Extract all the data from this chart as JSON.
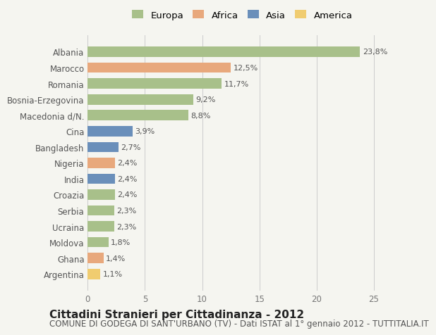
{
  "countries": [
    "Albania",
    "Marocco",
    "Romania",
    "Bosnia-Erzegovina",
    "Macedonia d/N.",
    "Cina",
    "Bangladesh",
    "Nigeria",
    "India",
    "Croazia",
    "Serbia",
    "Ucraina",
    "Moldova",
    "Ghana",
    "Argentina"
  ],
  "values": [
    23.8,
    12.5,
    11.7,
    9.2,
    8.8,
    3.9,
    2.7,
    2.4,
    2.4,
    2.4,
    2.3,
    2.3,
    1.8,
    1.4,
    1.1
  ],
  "labels": [
    "23,8%",
    "12,5%",
    "11,7%",
    "9,2%",
    "8,8%",
    "3,9%",
    "2,7%",
    "2,4%",
    "2,4%",
    "2,4%",
    "2,3%",
    "2,3%",
    "1,8%",
    "1,4%",
    "1,1%"
  ],
  "continents": [
    "Europa",
    "Africa",
    "Europa",
    "Europa",
    "Europa",
    "Asia",
    "Asia",
    "Africa",
    "Asia",
    "Europa",
    "Europa",
    "Europa",
    "Europa",
    "Africa",
    "America"
  ],
  "colors": {
    "Europa": "#a8c08a",
    "Africa": "#e8a87c",
    "Asia": "#6a8fba",
    "America": "#f0cc70"
  },
  "legend_order": [
    "Europa",
    "Africa",
    "Asia",
    "America"
  ],
  "xlim": [
    0,
    27
  ],
  "xticks": [
    0,
    5,
    10,
    15,
    20,
    25
  ],
  "title": "Cittadini Stranieri per Cittadinanza - 2012",
  "subtitle": "COMUNE DI GODEGA DI SANT'URBANO (TV) - Dati ISTAT al 1° gennaio 2012 - TUTTITALIA.IT",
  "bg_color": "#f5f5f0",
  "bar_height": 0.65,
  "title_fontsize": 11,
  "subtitle_fontsize": 8.5,
  "label_fontsize": 8,
  "tick_fontsize": 8.5
}
